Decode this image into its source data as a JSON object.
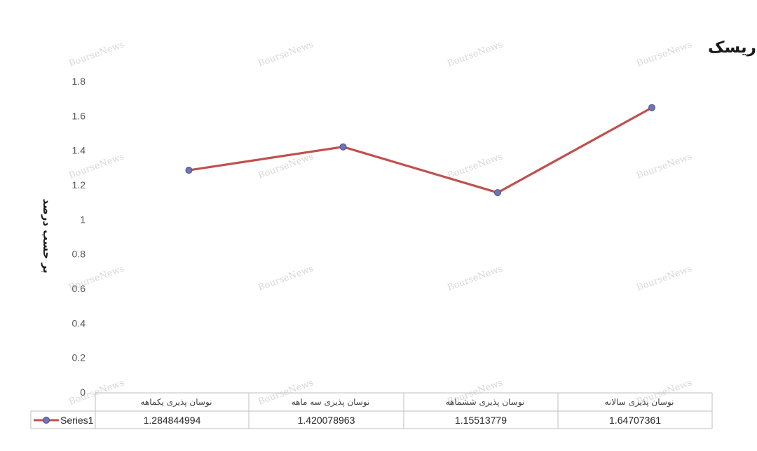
{
  "chart_data": {
    "type": "line",
    "title": "نوسان پذیری میانگین نرخ بهره بدون ریسک",
    "ylabel": "بر حسب درصد",
    "xlabel": "",
    "ylim": [
      0,
      1.8
    ],
    "yticks": [
      "0",
      "0.2",
      "0.4",
      "0.6",
      "0.8",
      "1",
      "1.2",
      "1.4",
      "1.6",
      "1.8"
    ],
    "categories": [
      "نوسان پذیری یکماهه",
      "نوسان پذیری سه ماهه",
      "نوسان پذیری ششماهه",
      "نوسان پذیری سالانه"
    ],
    "series": [
      {
        "name": "Series1",
        "values": [
          1.284844994,
          1.420078963,
          1.15513779,
          1.64707361
        ],
        "value_labels": [
          "1.284844994",
          "1.420078963",
          "1.15513779",
          "1.64707361"
        ]
      }
    ],
    "data_table": true,
    "grid": false,
    "legend": "data-table-left",
    "colors": {
      "line": "#c0504d",
      "marker": "#6f74b8",
      "marker_edge": "#4b4f8f",
      "table_border": "#bfbfbf"
    }
  },
  "watermark": "BourseNews"
}
